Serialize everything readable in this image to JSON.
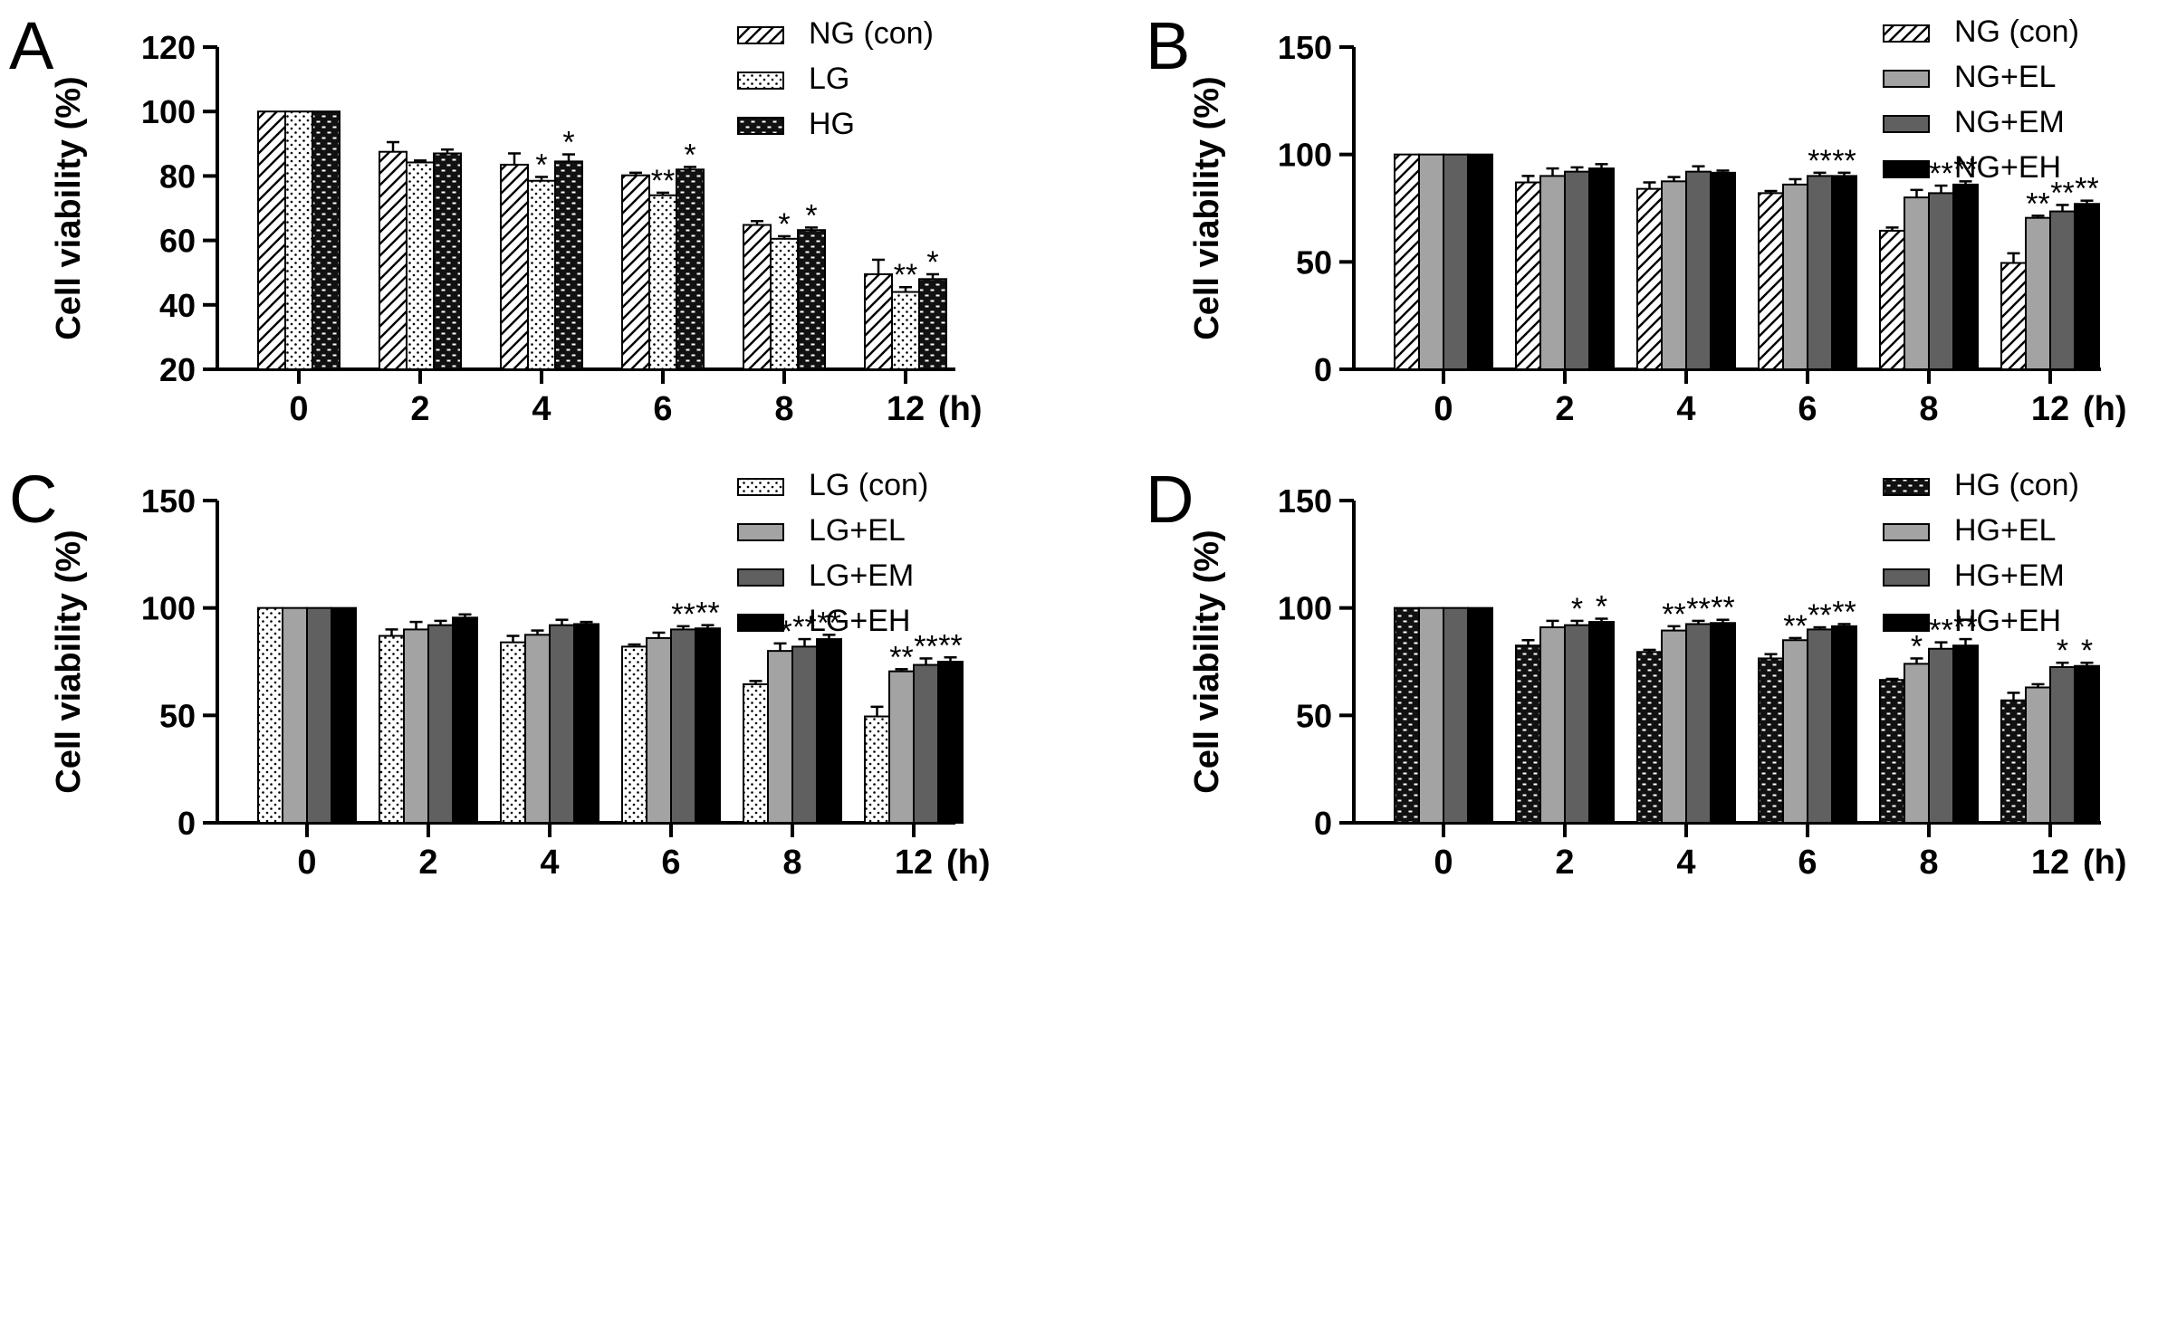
{
  "chart_data": [
    {
      "panel": "A",
      "type": "bar",
      "ylabel": "Cell viability (%)",
      "ylim": [
        20,
        120
      ],
      "yticks": [
        20,
        40,
        60,
        80,
        100,
        120
      ],
      "categories": [
        "0",
        "2",
        "4",
        "6",
        "8",
        "12"
      ],
      "x_unit": "(h)",
      "legend_position": "top-right",
      "series": [
        {
          "name": "NG (con)",
          "pattern": "diag",
          "values": [
            100,
            87.5,
            83.5,
            80.2,
            64.8,
            49.5
          ],
          "errors": [
            0,
            3,
            3.5,
            0.8,
            1.2,
            4.5
          ],
          "sig": [
            "",
            "",
            "",
            "",
            "",
            ""
          ]
        },
        {
          "name": "LG",
          "pattern": "dots",
          "values": [
            100,
            84.2,
            78.5,
            74,
            60.5,
            44
          ],
          "errors": [
            0,
            0.6,
            1.2,
            0.8,
            0.8,
            1.5
          ],
          "sig": [
            "",
            "",
            "*",
            "**",
            "*",
            "**"
          ]
        },
        {
          "name": "HG",
          "pattern": "brick",
          "values": [
            100,
            87,
            84.5,
            82,
            63.2,
            48
          ],
          "errors": [
            0,
            1.2,
            2.2,
            0.8,
            0.8,
            1.5
          ],
          "sig": [
            "",
            "",
            "*",
            "*",
            "*",
            "*"
          ]
        }
      ]
    },
    {
      "panel": "B",
      "type": "bar",
      "ylabel": "Cell viability (%)",
      "ylim": [
        0,
        150
      ],
      "yticks": [
        0,
        50,
        100,
        150
      ],
      "categories": [
        "0",
        "2",
        "4",
        "6",
        "8",
        "12"
      ],
      "x_unit": "(h)",
      "legend_position": "top-right",
      "series": [
        {
          "name": "NG (con)",
          "pattern": "diag",
          "values": [
            100,
            87,
            84,
            82,
            64.5,
            49.5
          ],
          "errors": [
            0,
            3,
            3,
            1,
            1.5,
            4.5
          ],
          "sig": [
            "",
            "",
            "",
            "",
            "",
            ""
          ]
        },
        {
          "name": "NG+EL",
          "pattern": "lightgray",
          "values": [
            100,
            90,
            87.5,
            86,
            80,
            70.5
          ],
          "errors": [
            0,
            3.5,
            2,
            2.5,
            3.5,
            1
          ],
          "sig": [
            "",
            "",
            "",
            "",
            "**",
            "**"
          ]
        },
        {
          "name": "NG+EM",
          "pattern": "darkgray",
          "values": [
            100,
            92,
            92,
            90,
            82,
            73.5
          ],
          "errors": [
            0,
            2,
            2.5,
            1.5,
            3.5,
            3
          ],
          "sig": [
            "",
            "",
            "",
            "**",
            "**",
            "**"
          ]
        },
        {
          "name": "NG+EH",
          "pattern": "black",
          "values": [
            100,
            93.5,
            91.5,
            90,
            86,
            77
          ],
          "errors": [
            0,
            2,
            1,
            1.5,
            1.5,
            1.5
          ],
          "sig": [
            "",
            "",
            "",
            "**",
            "**",
            "**"
          ]
        }
      ]
    },
    {
      "panel": "C",
      "type": "bar",
      "ylabel": "Cell viability (%)",
      "ylim": [
        0,
        150
      ],
      "yticks": [
        0,
        50,
        100,
        150
      ],
      "categories": [
        "0",
        "2",
        "4",
        "6",
        "8",
        "12"
      ],
      "x_unit": "(h)",
      "legend_position": "top-right",
      "series": [
        {
          "name": "LG (con)",
          "pattern": "dots",
          "values": [
            100,
            87,
            84,
            82,
            64.5,
            49.5
          ],
          "errors": [
            0,
            3,
            3,
            1,
            1.5,
            4.5
          ],
          "sig": [
            "",
            "",
            "",
            "",
            "",
            ""
          ]
        },
        {
          "name": "LG+EL",
          "pattern": "lightgray",
          "values": [
            100,
            90,
            87.5,
            86,
            80,
            70.5
          ],
          "errors": [
            0,
            3.5,
            2,
            2.5,
            3.5,
            1
          ],
          "sig": [
            "",
            "",
            "",
            "",
            "**",
            "**"
          ]
        },
        {
          "name": "LG+EM",
          "pattern": "darkgray",
          "values": [
            100,
            92,
            92,
            90,
            82,
            73.5
          ],
          "errors": [
            0,
            2,
            2.5,
            1.5,
            3.5,
            3
          ],
          "sig": [
            "",
            "",
            "",
            "**",
            "**",
            "**"
          ]
        },
        {
          "name": "LG+EH",
          "pattern": "black",
          "values": [
            100,
            95.5,
            92.5,
            90.5,
            85.5,
            75
          ],
          "errors": [
            0,
            1.5,
            1,
            1.5,
            2,
            2
          ],
          "sig": [
            "",
            "",
            "",
            "**",
            "**",
            "**"
          ]
        }
      ]
    },
    {
      "panel": "D",
      "type": "bar",
      "ylabel": "Cell viability (%)",
      "ylim": [
        0,
        150
      ],
      "yticks": [
        0,
        50,
        100,
        150
      ],
      "categories": [
        "0",
        "2",
        "4",
        "6",
        "8",
        "12"
      ],
      "x_unit": "(h)",
      "legend_position": "top-right",
      "series": [
        {
          "name": "HG (con)",
          "pattern": "brick",
          "values": [
            100,
            82.5,
            79.5,
            76.5,
            66.5,
            57
          ],
          "errors": [
            0,
            2.5,
            1,
            2,
            0.5,
            3.5
          ],
          "sig": [
            "",
            "",
            "",
            "",
            "",
            ""
          ]
        },
        {
          "name": "HG+EL",
          "pattern": "lightgray",
          "values": [
            100,
            91,
            89.5,
            85,
            74,
            63
          ],
          "errors": [
            0,
            3,
            2,
            1,
            2.5,
            1.5
          ],
          "sig": [
            "",
            "",
            "**",
            "**",
            "*",
            ""
          ]
        },
        {
          "name": "HG+EM",
          "pattern": "darkgray",
          "values": [
            100,
            92,
            92.5,
            90,
            81,
            72.5
          ],
          "errors": [
            0,
            2,
            1.5,
            1,
            3,
            2
          ],
          "sig": [
            "",
            "*",
            "**",
            "**",
            "**",
            "*"
          ]
        },
        {
          "name": "HG+EH",
          "pattern": "black",
          "values": [
            100,
            93.5,
            93,
            91.5,
            82.5,
            73
          ],
          "errors": [
            0,
            1.5,
            1.5,
            1,
            3,
            1.5
          ],
          "sig": [
            "",
            "*",
            "**",
            "**",
            "**",
            "*"
          ]
        }
      ]
    }
  ]
}
